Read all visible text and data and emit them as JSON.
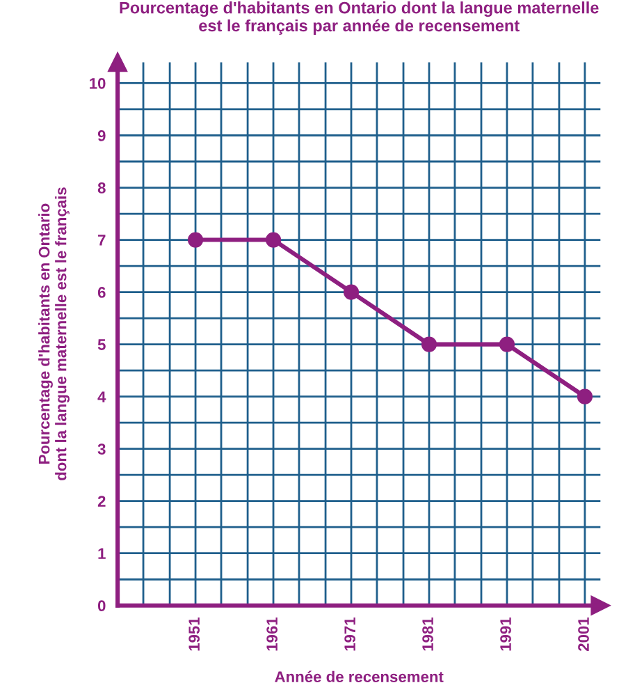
{
  "chart_data": {
    "type": "line",
    "title": "Pourcentage d'habitants en Ontario dont la langue maternelle\nest le français par année de recensement",
    "xlabel": "Année de recensement",
    "ylabel": "Pourcentage d'habitants en Ontario\ndont la langue maternelle est le français",
    "x": [
      1951,
      1961,
      1971,
      1981,
      1991,
      2001
    ],
    "series": [
      {
        "color": "#8e1f80",
        "values": [
          7,
          7,
          6,
          5,
          5,
          4
        ]
      }
    ],
    "xlim": [
      1941,
      2003
    ],
    "ylim": [
      0,
      10.4
    ],
    "xticks": [
      {
        "value": 1944.3,
        "label": null
      },
      {
        "value": 1947.7,
        "label": null
      },
      1951,
      {
        "value": 1954.3,
        "label": null
      },
      {
        "value": 1957.7,
        "label": null
      },
      1961,
      {
        "value": 1964.3,
        "label": null
      },
      {
        "value": 1967.7,
        "label": null
      },
      1971,
      {
        "value": 1974.3,
        "label": null
      },
      {
        "value": 1977.7,
        "label": null
      },
      1981,
      {
        "value": 1984.3,
        "label": null
      },
      {
        "value": 1987.7,
        "label": null
      },
      1991,
      {
        "value": 1994.3,
        "label": null
      },
      {
        "value": 1997.7,
        "label": null
      },
      2001
    ],
    "yticks": [
      0,
      {
        "value": 0.5,
        "label": null
      },
      1,
      {
        "value": 1.5,
        "label": null
      },
      2,
      {
        "value": 2.5,
        "label": null
      },
      3,
      {
        "value": 3.5,
        "label": null
      },
      4,
      {
        "value": 4.5,
        "label": null
      },
      5,
      {
        "value": 5.5,
        "label": null
      },
      6,
      {
        "value": 6.5,
        "label": null
      },
      7,
      {
        "value": 7.5,
        "label": null
      },
      8,
      {
        "value": 8.5,
        "label": null
      },
      9,
      {
        "value": 9.5,
        "label": null
      },
      10
    ],
    "grid": true,
    "marker": "circle",
    "line_style": "solid",
    "legend": false
  }
}
